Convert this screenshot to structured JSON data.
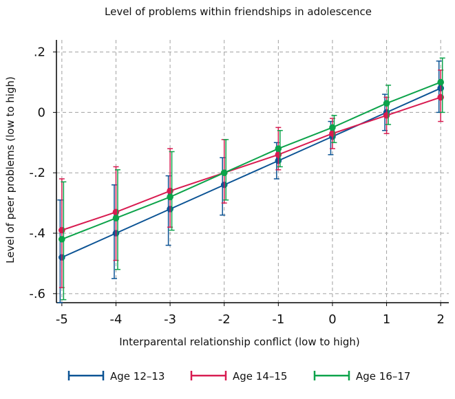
{
  "chart_data": {
    "type": "line",
    "title": "Level of problems within friendships in adolescence",
    "xlabel": "Interparental relationship conflict (low to high)",
    "ylabel": "Level of peer problems (low to high)",
    "x": [
      -5,
      -4,
      -3,
      -2,
      -1,
      0,
      1,
      2
    ],
    "x_tick_labels": [
      "-5",
      "-4",
      "-3",
      "-2",
      "-1",
      "0",
      "1",
      "2"
    ],
    "y_ticks": [
      0.2,
      0,
      -0.2,
      -0.4,
      -0.6
    ],
    "y_tick_labels": [
      ".2",
      "0",
      "-.2",
      "-.4",
      "-.6"
    ],
    "xlim": [
      -5.1,
      2.15
    ],
    "ylim": [
      -0.63,
      0.24
    ],
    "grid": true,
    "legend_position": "bottom",
    "series": [
      {
        "name": "Age 12–13",
        "color": "#0b5394",
        "values": [
          -0.48,
          -0.4,
          -0.32,
          -0.24,
          -0.16,
          -0.08,
          0.0,
          0.08
        ],
        "ci_low": [
          -0.63,
          -0.55,
          -0.44,
          -0.34,
          -0.22,
          -0.14,
          -0.06,
          0.0
        ],
        "ci_high": [
          -0.29,
          -0.24,
          -0.21,
          -0.15,
          -0.1,
          -0.03,
          0.06,
          0.17
        ]
      },
      {
        "name": "Age 14–15",
        "color": "#d81b50",
        "values": [
          -0.39,
          -0.33,
          -0.26,
          -0.2,
          -0.14,
          -0.07,
          -0.01,
          0.05
        ],
        "ci_low": [
          -0.58,
          -0.49,
          -0.38,
          -0.3,
          -0.19,
          -0.12,
          -0.07,
          -0.03
        ],
        "ci_high": [
          -0.22,
          -0.18,
          -0.12,
          -0.09,
          -0.05,
          -0.02,
          0.05,
          0.14
        ]
      },
      {
        "name": "Age 16–17",
        "color": "#0ca34a",
        "values": [
          -0.42,
          -0.35,
          -0.28,
          -0.2,
          -0.12,
          -0.05,
          0.03,
          0.1
        ],
        "ci_low": [
          -0.62,
          -0.52,
          -0.39,
          -0.29,
          -0.18,
          -0.1,
          -0.04,
          0.0
        ],
        "ci_high": [
          -0.23,
          -0.19,
          -0.13,
          -0.09,
          -0.06,
          -0.01,
          0.09,
          0.18
        ]
      }
    ]
  }
}
